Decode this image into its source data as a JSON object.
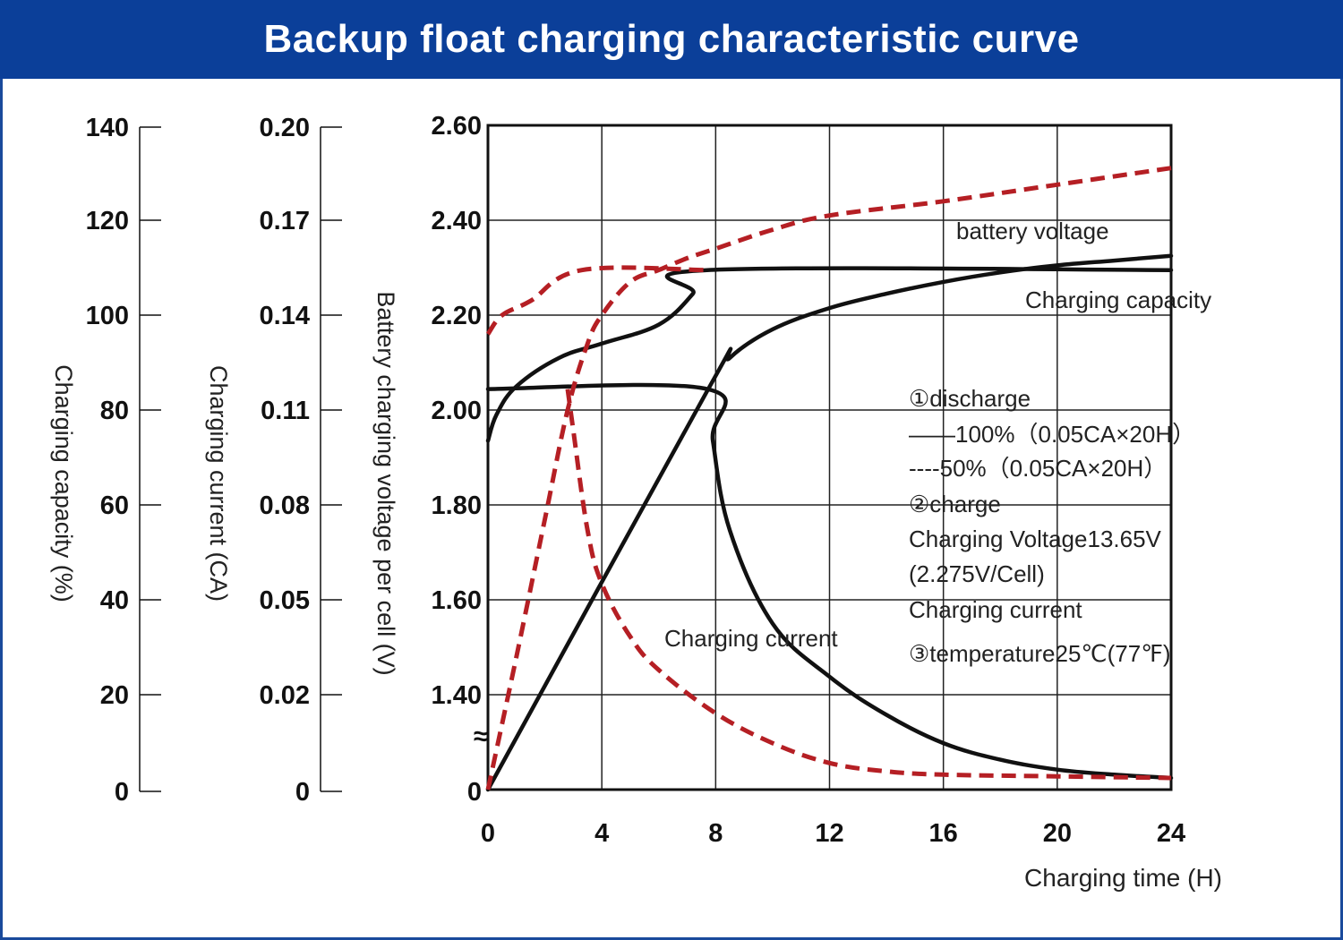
{
  "title": "Backup float charging characteristic curve",
  "colors": {
    "title_bg": "#0b3f99",
    "frame": "#1a4a9c",
    "solid": "#111111",
    "dashed": "#b51f24",
    "grid": "#222222"
  },
  "chart_data": {
    "type": "line",
    "title": "Backup float charging characteristic curve",
    "xlabel": "Charging time (H)",
    "xlim": [
      0,
      24
    ],
    "x_ticks": [
      "0",
      "4",
      "8",
      "12",
      "16",
      "20",
      "24"
    ],
    "grid": true,
    "axes": {
      "capacity": {
        "label": "Charging capacity (%)",
        "ticks": [
          "0",
          "20",
          "40",
          "60",
          "80",
          "100",
          "120",
          "140"
        ],
        "range": [
          0,
          140
        ]
      },
      "current": {
        "label": "Charging current (CA)",
        "ticks": [
          "0",
          "0.02",
          "0.05",
          "0.08",
          "0.11",
          "0.14",
          "0.17",
          "0.20"
        ],
        "range": [
          0,
          0.2
        ]
      },
      "voltage": {
        "label": "Battery charging voltage per cell (V)",
        "ticks": [
          "0",
          "1.40",
          "1.60",
          "1.80",
          "2.00",
          "2.20",
          "2.40",
          "2.60"
        ],
        "range": [
          1.2,
          2.6
        ],
        "break_symbol": "≈"
      }
    },
    "series": [
      {
        "style": "solid",
        "group": "battery voltage",
        "unit": "V",
        "points": [
          [
            0,
            1.935
          ],
          [
            0.3,
            1.99
          ],
          [
            1,
            2.05
          ],
          [
            2.5,
            2.11
          ],
          [
            4,
            2.14
          ],
          [
            6,
            2.18
          ],
          [
            7.2,
            2.245
          ],
          [
            7.7,
            2.295
          ],
          [
            24,
            2.295
          ]
        ]
      },
      {
        "style": "dashed",
        "group": "battery voltage",
        "unit": "V",
        "points": [
          [
            0,
            2.16
          ],
          [
            0.5,
            2.2
          ],
          [
            1.5,
            2.23
          ],
          [
            3.3,
            2.295
          ],
          [
            7.7,
            2.295
          ]
        ]
      },
      {
        "style": "solid",
        "group": "Charging current",
        "unit": "CA",
        "points": [
          [
            0,
            0.1206
          ],
          [
            7.7,
            0.1206
          ],
          [
            7.9,
            0.105
          ],
          [
            8.5,
            0.078
          ],
          [
            10,
            0.05
          ],
          [
            12,
            0.034
          ],
          [
            14,
            0.0225
          ],
          [
            16,
            0.014
          ],
          [
            18,
            0.009
          ],
          [
            20,
            0.006
          ],
          [
            22,
            0.0045
          ],
          [
            24,
            0.0035
          ]
        ]
      },
      {
        "style": "dashed",
        "group": "Charging current",
        "unit": "CA",
        "points": [
          [
            2.8,
            0.1206
          ],
          [
            3,
            0.108
          ],
          [
            3.5,
            0.078
          ],
          [
            4,
            0.062
          ],
          [
            5,
            0.046
          ],
          [
            6,
            0.036
          ],
          [
            8,
            0.023
          ],
          [
            10,
            0.014
          ],
          [
            12,
            0.008
          ],
          [
            14,
            0.0055
          ],
          [
            16,
            0.0045
          ],
          [
            20,
            0.004
          ],
          [
            24,
            0.0035
          ]
        ]
      },
      {
        "style": "solid",
        "group": "Charging capacity",
        "unit": "%",
        "points": [
          [
            0,
            0
          ],
          [
            7.7,
            84
          ],
          [
            8.5,
            91
          ],
          [
            10,
            97
          ],
          [
            12,
            101.5
          ],
          [
            14,
            104.5
          ],
          [
            16,
            107
          ],
          [
            18,
            109
          ],
          [
            20,
            110.5
          ],
          [
            22,
            111.5
          ],
          [
            24,
            112.5
          ]
        ]
      },
      {
        "style": "dashed",
        "group": "Charging capacity",
        "unit": "%",
        "points": [
          [
            0,
            0
          ],
          [
            1,
            28
          ],
          [
            2,
            57
          ],
          [
            2.8,
            80
          ],
          [
            3.5,
            94
          ],
          [
            4,
            100
          ],
          [
            5,
            107
          ],
          [
            6,
            109.5
          ],
          [
            7,
            112
          ],
          [
            8,
            114
          ],
          [
            10,
            118
          ],
          [
            12,
            121
          ],
          [
            16,
            124
          ],
          [
            20,
            127.5
          ],
          [
            24,
            131
          ]
        ]
      }
    ],
    "curve_labels": [
      {
        "text": "battery voltage"
      },
      {
        "text": "Charging capacity"
      },
      {
        "text": "Charging current"
      }
    ],
    "annotations": [
      "①discharge",
      "——100%（0.05CA×20H）",
      "----50%（0.05CA×20H）",
      "②charge",
      "Charging Voltage13.65V",
      "(2.275V/Cell)",
      "Charging current",
      "③temperature25℃(77℉)"
    ]
  }
}
